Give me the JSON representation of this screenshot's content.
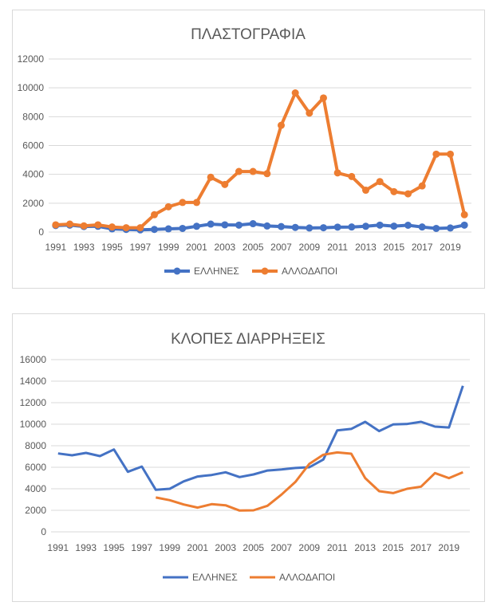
{
  "chart_data": [
    {
      "type": "line",
      "title": "ΠΛΑΣΤΟΓΡΑΦΙΑ",
      "markers": true,
      "x": [
        1991,
        1992,
        1993,
        1994,
        1995,
        1996,
        1997,
        1998,
        1999,
        2000,
        2001,
        2002,
        2003,
        2004,
        2005,
        2006,
        2007,
        2008,
        2009,
        2010,
        2011,
        2012,
        2013,
        2014,
        2015,
        2016,
        2017,
        2018,
        2019,
        2020
      ],
      "x_tick_labels": [
        "1991",
        "1993",
        "1995",
        "1997",
        "1999",
        "2001",
        "2003",
        "2005",
        "2007",
        "2009",
        "2011",
        "2013",
        "2015",
        "2017",
        "2019"
      ],
      "ylim": [
        0,
        12000
      ],
      "y_ticks": [
        "0",
        "2000",
        "4000",
        "6000",
        "8000",
        "10000",
        "12000"
      ],
      "grid": true,
      "legend": "bottom",
      "series": [
        {
          "name": "ΕΛΛΗΝΕΣ",
          "color": "#4472c4",
          "values": [
            450,
            480,
            380,
            400,
            220,
            180,
            150,
            180,
            220,
            250,
            400,
            550,
            500,
            480,
            580,
            420,
            380,
            320,
            280,
            300,
            340,
            350,
            400,
            480,
            410,
            470,
            350,
            250,
            280,
            480
          ]
        },
        {
          "name": "ΑΛΛΟΔΑΠΟΙ",
          "color": "#ed7d31",
          "values": [
            500,
            550,
            430,
            500,
            350,
            300,
            300,
            1200,
            1750,
            2050,
            2050,
            3800,
            3300,
            4200,
            4200,
            4050,
            7400,
            9650,
            8250,
            9300,
            4100,
            3850,
            2900,
            3500,
            2800,
            2650,
            3200,
            5400,
            5400,
            1200
          ]
        }
      ]
    },
    {
      "type": "line",
      "title": "ΚΛΟΠΕΣ ΔΙΑΡΡΗΞΕΙΣ",
      "markers": false,
      "x": [
        1991,
        1992,
        1993,
        1994,
        1995,
        1996,
        1997,
        1998,
        1999,
        2000,
        2001,
        2002,
        2003,
        2004,
        2005,
        2006,
        2007,
        2008,
        2009,
        2010,
        2011,
        2012,
        2013,
        2014,
        2015,
        2016,
        2017,
        2018,
        2019,
        2020
      ],
      "x_tick_labels": [
        "1991",
        "1993",
        "1995",
        "1997",
        "1999",
        "2001",
        "2003",
        "2005",
        "2007",
        "2009",
        "2011",
        "2013",
        "2015",
        "2017",
        "2019"
      ],
      "ylim": [
        0,
        16000
      ],
      "y_ticks": [
        "0",
        "2000",
        "4000",
        "6000",
        "8000",
        "10000",
        "12000",
        "14000",
        "16000"
      ],
      "grid": true,
      "legend": "bottom",
      "series": [
        {
          "name": "ΕΛΛΗΝΕΣ",
          "color": "#4472c4",
          "values": [
            7280,
            7110,
            7330,
            7040,
            7650,
            5580,
            6070,
            3900,
            4000,
            4690,
            5140,
            5280,
            5530,
            5090,
            5330,
            5700,
            5800,
            5930,
            6000,
            6720,
            9430,
            9560,
            10220,
            9360,
            9980,
            10020,
            10220,
            9780,
            9700,
            13560
          ]
        },
        {
          "name": "ΑΛΛΟΔΑΠΟΙ",
          "color": "#ed7d31",
          "values": [
            null,
            null,
            null,
            null,
            null,
            null,
            null,
            3190,
            2940,
            2540,
            2250,
            2570,
            2470,
            1980,
            2000,
            2420,
            3460,
            4640,
            6320,
            7160,
            7380,
            7260,
            4990,
            3780,
            3600,
            4000,
            4200,
            5460,
            4990,
            5530
          ]
        }
      ]
    }
  ]
}
